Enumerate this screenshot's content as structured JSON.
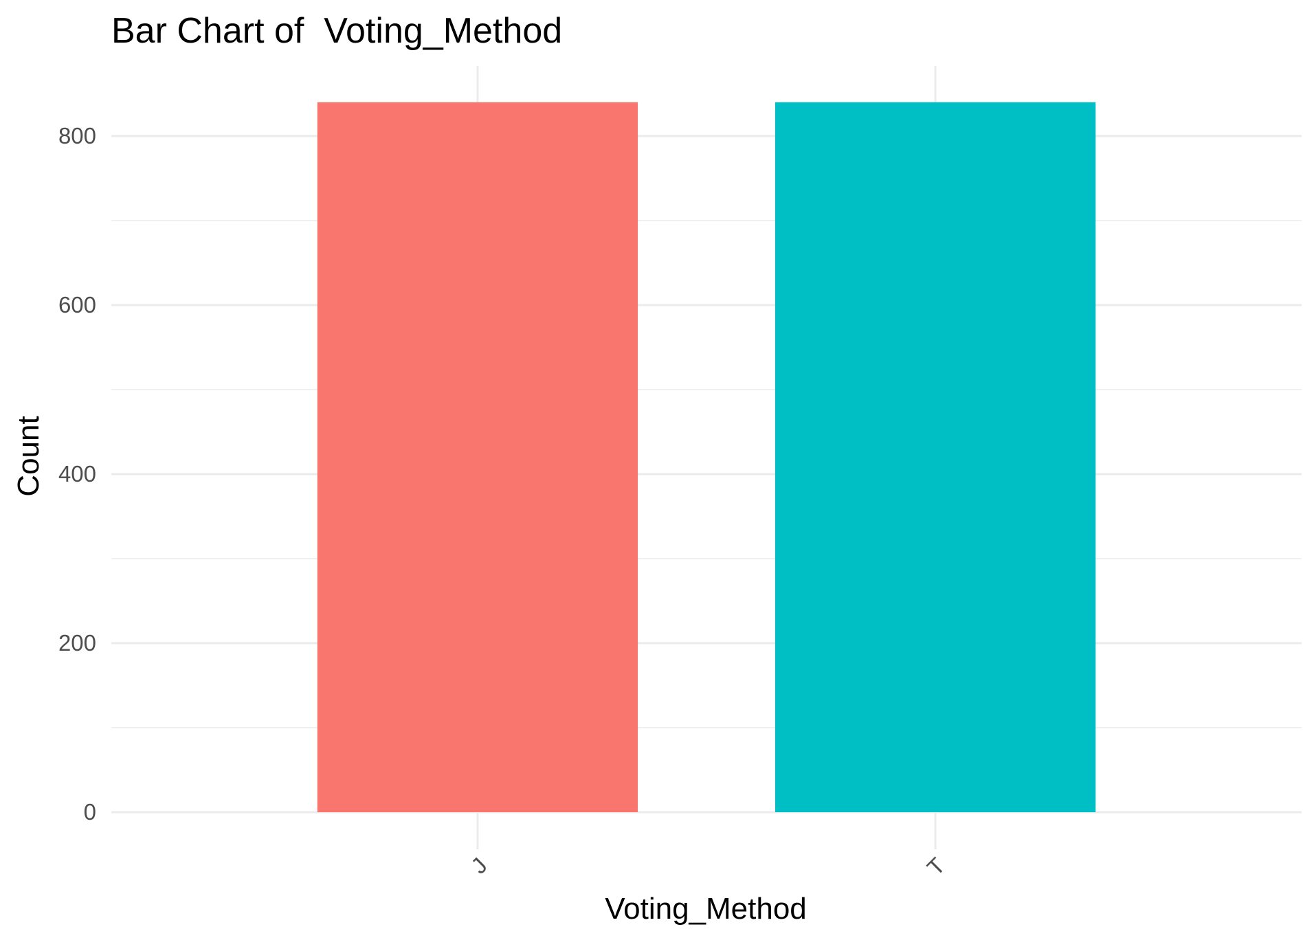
{
  "chart_data": {
    "type": "bar",
    "title": "Bar Chart of  Voting_Method",
    "xlabel": "Voting_Method",
    "ylabel": "Count",
    "categories": [
      "J",
      "T"
    ],
    "values": [
      840,
      840
    ],
    "colors": [
      "#f8766d",
      "#00bfc4"
    ],
    "ylim": [
      0,
      880
    ],
    "yticks": [
      0,
      200,
      400,
      600,
      800
    ],
    "grid": true,
    "legend": "none",
    "x_tick_rotation_deg": 45
  }
}
